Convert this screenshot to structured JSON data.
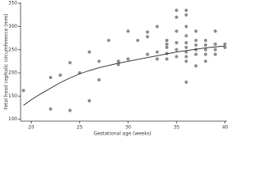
{
  "chart_data": {
    "type": "scatter",
    "xlabel": "Gestational age (weeks)",
    "ylabel": "Fetal head cephalic circumference (mm)",
    "xlim": [
      18.9,
      40.2
    ],
    "xticks": [
      20,
      25,
      30,
      35,
      40
    ],
    "ylim": [
      96,
      352
    ],
    "yticks": [
      100,
      150,
      200,
      250,
      300,
      350
    ],
    "series": [
      {
        "color": "#8c8c8c",
        "x": [
          19.2,
          22,
          22,
          23,
          24,
          24,
          25,
          26,
          26,
          27,
          27,
          28,
          29,
          29,
          30,
          30,
          31,
          32,
          32,
          32,
          33,
          33,
          33,
          34,
          34,
          34,
          34,
          34,
          35,
          35,
          35,
          35,
          35,
          35,
          36,
          36,
          36,
          36,
          36,
          36,
          36,
          36,
          36,
          36,
          37,
          37,
          37,
          37,
          37,
          37,
          38,
          38,
          38,
          38,
          38,
          39,
          39,
          39,
          39,
          40,
          40
        ],
        "values": [
          162,
          190,
          122,
          195,
          222,
          119,
          200,
          245,
          140,
          185,
          225,
          270,
          218,
          225,
          230,
          290,
          270,
          288,
          278,
          240,
          300,
          245,
          230,
          270,
          262,
          255,
          242,
          230,
          335,
          320,
          290,
          265,
          250,
          235,
          335,
          325,
          300,
          280,
          265,
          255,
          245,
          235,
          225,
          180,
          290,
          270,
          260,
          250,
          240,
          215,
          270,
          260,
          250,
          240,
          225,
          290,
          262,
          250,
          240,
          262,
          255
        ]
      }
    ],
    "fit_line": {
      "color": "#222222",
      "x": [
        19.2,
        20,
        21,
        22,
        23,
        24,
        25,
        26,
        27,
        28,
        29,
        30,
        31,
        32,
        33,
        34,
        35,
        36,
        37,
        38,
        39,
        40
      ],
      "values": [
        130,
        142,
        155,
        167,
        179,
        189,
        198,
        205,
        211,
        216,
        221,
        225,
        229,
        233,
        237,
        241,
        245,
        248,
        251,
        254,
        256,
        258
      ]
    }
  }
}
